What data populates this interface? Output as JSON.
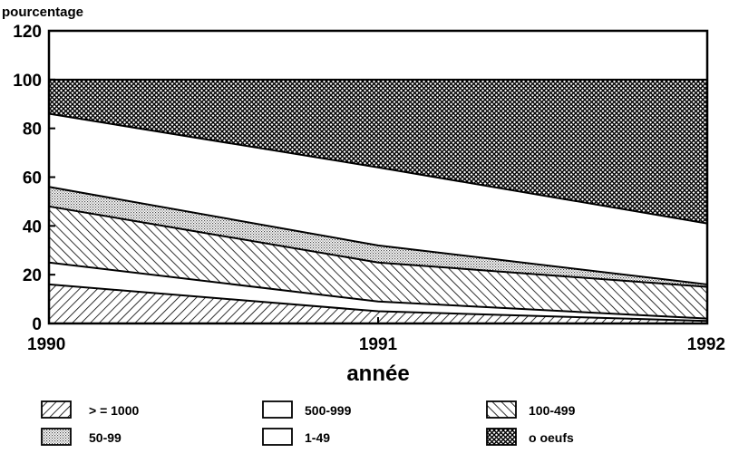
{
  "chart_data": {
    "type": "area",
    "stacked": true,
    "ylabel": "pourcentage",
    "xlabel": "année",
    "x": [
      1990,
      1991,
      1992
    ],
    "x_tick_labels": [
      "1990",
      "1991",
      "1992"
    ],
    "ylim": [
      0,
      120
    ],
    "y_ticks": [
      0,
      20,
      40,
      60,
      80,
      100,
      120
    ],
    "y_tick_labels": [
      "0",
      "20",
      "40",
      "60",
      "80",
      "100",
      "120"
    ],
    "grid": false,
    "legend_position": "bottom",
    "series": [
      {
        "name": ">= 1000",
        "legend_label": "> = 1000",
        "pattern": "hatch-forward",
        "values": [
          16,
          5,
          1
        ]
      },
      {
        "name": "500-999",
        "legend_label": "500-999",
        "pattern": "white",
        "values": [
          9,
          4,
          1
        ]
      },
      {
        "name": "100-499",
        "legend_label": "100-499",
        "pattern": "hatch-back",
        "values": [
          23,
          16,
          13
        ]
      },
      {
        "name": "50-99",
        "legend_label": "50-99",
        "pattern": "dotted",
        "values": [
          8,
          7,
          1
        ]
      },
      {
        "name": "1-49",
        "legend_label": "1-49",
        "pattern": "white",
        "values": [
          30,
          32,
          25
        ]
      },
      {
        "name": "o oeufs",
        "legend_label": "o oeufs",
        "pattern": "crosshatch",
        "values": [
          14,
          36,
          59
        ]
      }
    ]
  }
}
